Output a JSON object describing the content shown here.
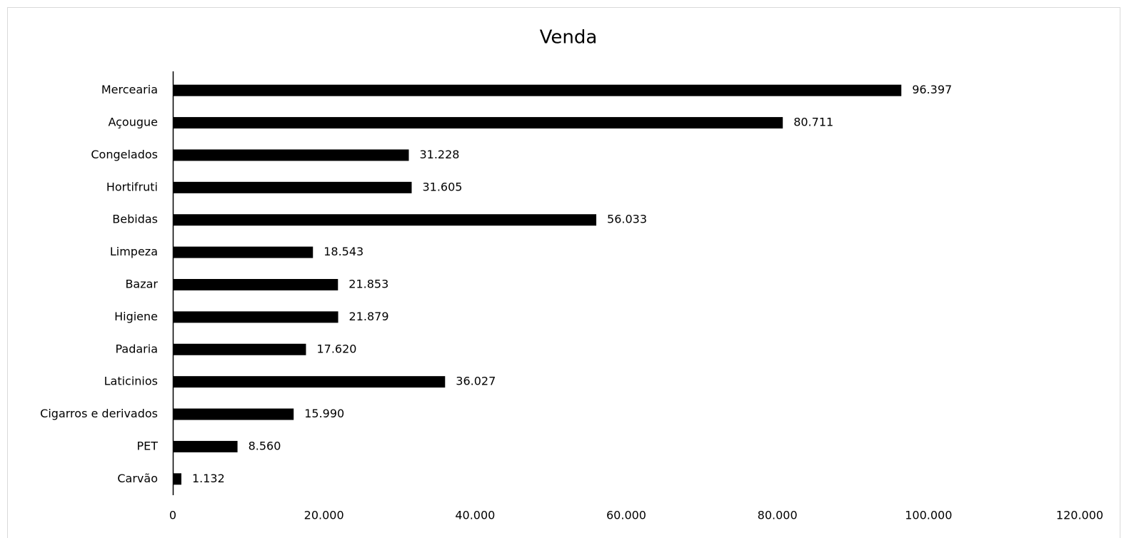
{
  "chart_data": {
    "type": "bar",
    "orientation": "horizontal",
    "title": "Venda",
    "categories": [
      "Mercearia",
      "Açougue",
      "Congelados",
      "Hortifruti",
      "Bebidas",
      "Limpeza",
      "Bazar",
      "Higiene",
      "Padaria",
      "Laticinios",
      "Cigarros e derivados",
      "PET",
      "Carvão"
    ],
    "values": [
      96397,
      80711,
      31228,
      31605,
      56033,
      18543,
      21853,
      21879,
      17620,
      36027,
      15990,
      8560,
      1132
    ],
    "value_labels": [
      "96.397",
      "80.711",
      "31.228",
      "31.605",
      "56.033",
      "18.543",
      "21.853",
      "21.879",
      "17.620",
      "36.027",
      "15.990",
      "8.560",
      "1.132"
    ],
    "color": "#000000",
    "xlim": [
      0,
      120000
    ],
    "xticks": [
      0,
      {
        "value": 20000,
        "label": "20.000"
      },
      {
        "value": 40000,
        "label": "40.000"
      },
      {
        "value": 60000,
        "label": "60.000"
      },
      {
        "value": 80000,
        "label": "80.000"
      },
      {
        "value": 100000,
        "label": "100.000"
      },
      {
        "value": 120000,
        "label": "120.000"
      }
    ],
    "grid": false
  }
}
